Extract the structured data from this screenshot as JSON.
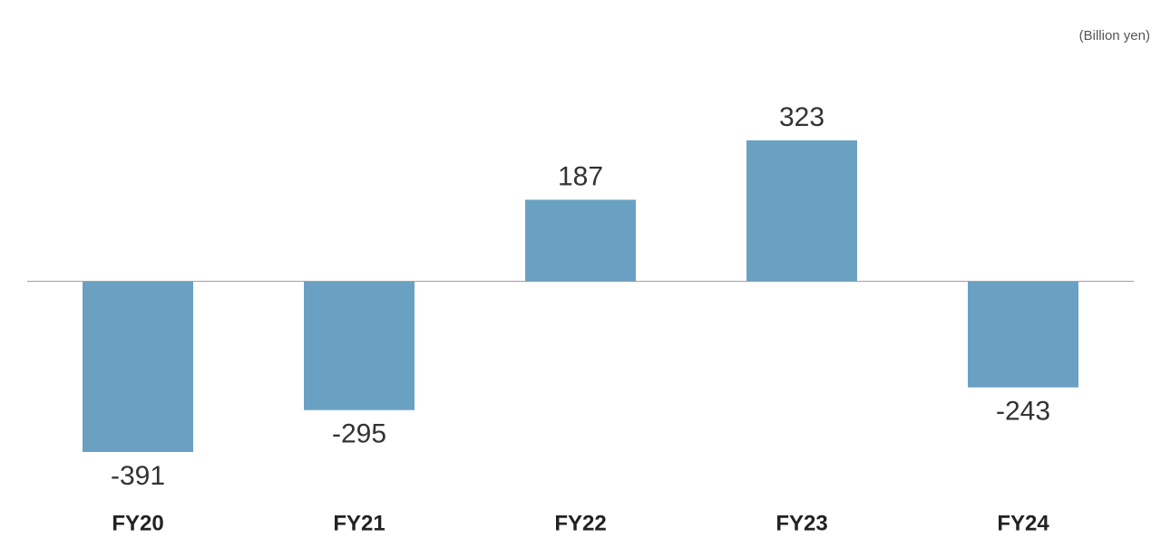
{
  "chart_data": {
    "type": "bar",
    "unit": "(Billion yen)",
    "categories": [
      "FY20",
      "FY21",
      "FY22",
      "FY23",
      "FY24"
    ],
    "values": [
      -391,
      -295,
      187,
      323,
      -243
    ],
    "color": "#6aa1c3"
  }
}
